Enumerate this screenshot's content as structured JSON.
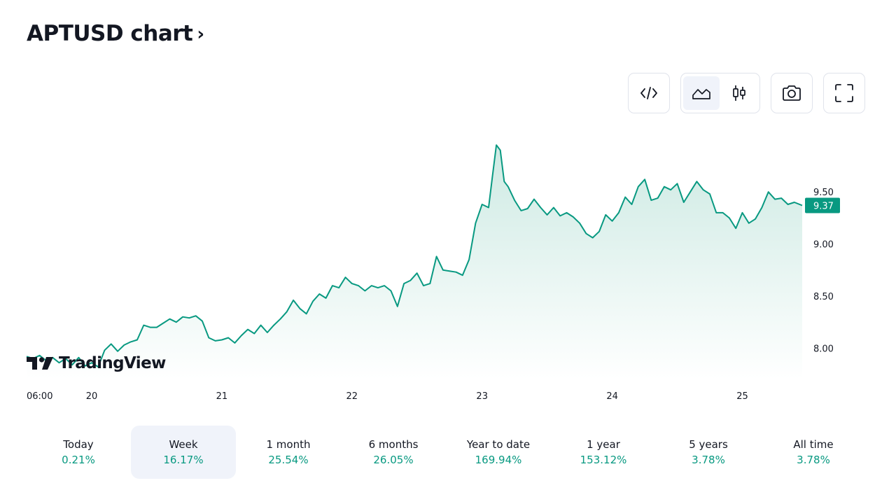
{
  "header": {
    "title": "APTUSD chart",
    "chevron": "›"
  },
  "toolbar": {
    "embed_icon": "code-icon",
    "area_icon": "area-chart-icon",
    "candles_icon": "candlestick-icon",
    "snapshot_icon": "camera-icon",
    "fullscreen_icon": "fullscreen-icon",
    "active_chart_type": "area"
  },
  "logo": {
    "text": "TradingView"
  },
  "colors": {
    "line": "#089981",
    "fill_top": "#cdeae3",
    "fill_bottom": "#ffffff",
    "price_tag": "#089981",
    "positive": "#089981",
    "active_bg": "#f0f3fa"
  },
  "chart_data": {
    "type": "area",
    "title": "",
    "xlabel": "",
    "ylabel": "",
    "x_ticks": [
      "06:00",
      "20",
      "21",
      "22",
      "23",
      "24",
      "25"
    ],
    "x_tick_positions": [
      0.2,
      0.5,
      1.5,
      2.5,
      3.5,
      4.5,
      5.5
    ],
    "y_ticks": [
      "8.00",
      "8.50",
      "9.00",
      "9.50"
    ],
    "y_tick_values": [
      8.0,
      8.5,
      9.0,
      9.5
    ],
    "ylim": [
      7.7,
      10.2
    ],
    "xlim": [
      0.0,
      5.96
    ],
    "x_unit": "days since 06:00 on the 19th (tick positions)",
    "last_price": "9.37",
    "last_price_value": 9.37,
    "grid": false,
    "series": [
      {
        "x": [
          0.0,
          0.05,
          0.1,
          0.15,
          0.2,
          0.25,
          0.3,
          0.35,
          0.4,
          0.45,
          0.5,
          0.55,
          0.6,
          0.65,
          0.7,
          0.75,
          0.8,
          0.85,
          0.9,
          0.95,
          1.0,
          1.05,
          1.1,
          1.15,
          1.2,
          1.25,
          1.3,
          1.35,
          1.4,
          1.45,
          1.5,
          1.55,
          1.6,
          1.65,
          1.7,
          1.75,
          1.8,
          1.85,
          1.9,
          1.95,
          2.0,
          2.05,
          2.1,
          2.15,
          2.2,
          2.25,
          2.3,
          2.35,
          2.4,
          2.45,
          2.5,
          2.55,
          2.6,
          2.65,
          2.7,
          2.75,
          2.8,
          2.85,
          2.9,
          2.95,
          3.0,
          3.05,
          3.1,
          3.15,
          3.2,
          3.25,
          3.3,
          3.35,
          3.4,
          3.45,
          3.5,
          3.55,
          3.58,
          3.61,
          3.64,
          3.67,
          3.7,
          3.75,
          3.8,
          3.85,
          3.9,
          3.95,
          4.0,
          4.05,
          4.1,
          4.15,
          4.2,
          4.25,
          4.3,
          4.35,
          4.4,
          4.45,
          4.5,
          4.55,
          4.6,
          4.65,
          4.7,
          4.75,
          4.8,
          4.85,
          4.9,
          4.95,
          5.0,
          5.05,
          5.1,
          5.15,
          5.2,
          5.25,
          5.3,
          5.35,
          5.4,
          5.45,
          5.5,
          5.55,
          5.6,
          5.65,
          5.7,
          5.75,
          5.8,
          5.85,
          5.9,
          5.96
        ],
        "y": [
          7.92,
          7.9,
          7.93,
          7.88,
          7.91,
          7.86,
          7.9,
          7.84,
          7.91,
          7.83,
          7.86,
          7.82,
          7.98,
          8.04,
          7.97,
          8.03,
          8.06,
          8.08,
          8.22,
          8.2,
          8.2,
          8.24,
          8.28,
          8.25,
          8.3,
          8.29,
          8.31,
          8.26,
          8.1,
          8.07,
          8.08,
          8.1,
          8.05,
          8.12,
          8.18,
          8.14,
          8.22,
          8.15,
          8.22,
          8.28,
          8.35,
          8.46,
          8.38,
          8.33,
          8.45,
          8.52,
          8.48,
          8.6,
          8.58,
          8.68,
          8.62,
          8.6,
          8.55,
          8.6,
          8.58,
          8.6,
          8.55,
          8.4,
          8.62,
          8.65,
          8.72,
          8.6,
          8.62,
          8.88,
          8.75,
          8.74,
          8.73,
          8.7,
          8.85,
          9.2,
          9.38,
          9.35,
          9.65,
          9.95,
          9.9,
          9.6,
          9.55,
          9.42,
          9.32,
          9.34,
          9.43,
          9.35,
          9.28,
          9.35,
          9.27,
          9.3,
          9.26,
          9.2,
          9.1,
          9.06,
          9.12,
          9.28,
          9.22,
          9.3,
          9.45,
          9.38,
          9.55,
          9.62,
          9.42,
          9.44,
          9.55,
          9.52,
          9.58,
          9.4,
          9.5,
          9.6,
          9.52,
          9.48,
          9.3,
          9.3,
          9.25,
          9.15,
          9.3,
          9.2,
          9.24,
          9.35,
          9.5,
          9.43,
          9.44,
          9.38,
          9.4,
          9.37
        ]
      }
    ]
  },
  "periods": [
    {
      "label": "Today",
      "value": "0.21%",
      "active": false
    },
    {
      "label": "Week",
      "value": "16.17%",
      "active": true
    },
    {
      "label": "1 month",
      "value": "25.54%",
      "active": false
    },
    {
      "label": "6 months",
      "value": "26.05%",
      "active": false
    },
    {
      "label": "Year to date",
      "value": "169.94%",
      "active": false
    },
    {
      "label": "1 year",
      "value": "153.12%",
      "active": false
    },
    {
      "label": "5 years",
      "value": "3.78%",
      "active": false
    },
    {
      "label": "All time",
      "value": "3.78%",
      "active": false
    }
  ]
}
